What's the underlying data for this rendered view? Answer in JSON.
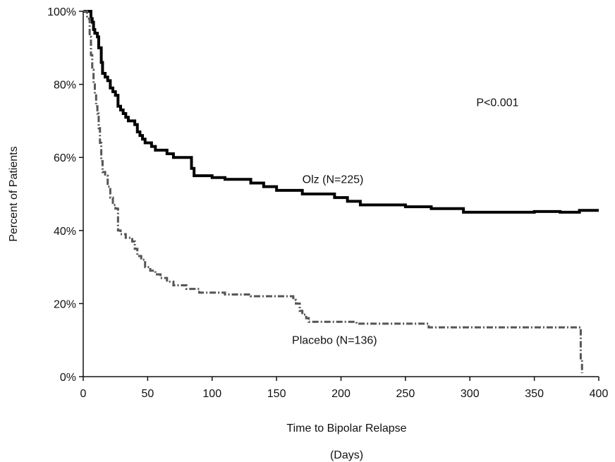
{
  "chart_data": {
    "type": "line",
    "title": "",
    "xlabel": "Time to Bipolar Relapse",
    "xlabel_unit": "(Days)",
    "ylabel": "Percent of Patients",
    "xlim": [
      0,
      400
    ],
    "ylim": [
      0,
      100
    ],
    "x_ticks": [
      0,
      50,
      100,
      150,
      200,
      250,
      300,
      350,
      400
    ],
    "x_tick_labels": [
      "0",
      "50",
      "100",
      "150",
      "200",
      "250",
      "300",
      "350",
      "400"
    ],
    "y_ticks": [
      0,
      20,
      40,
      60,
      80,
      100
    ],
    "y_tick_labels": [
      "0%",
      "20%",
      "40%",
      "60%",
      "80%",
      "100%"
    ],
    "grid": false,
    "step": true,
    "annotations": [
      {
        "text": "P<0.001",
        "x": 305,
        "y": 74
      },
      {
        "text": "Olz (N=225)",
        "x": 170,
        "y": 53
      },
      {
        "text": "Placebo (N=136)",
        "x": 162,
        "y": 9
      }
    ],
    "series": [
      {
        "name": "Olz (N=225)",
        "color": "#000000",
        "style": "solid",
        "x": [
          0,
          6,
          7,
          8,
          9,
          11,
          12,
          14,
          15,
          17,
          19,
          21,
          23,
          25,
          27,
          29,
          31,
          33,
          35,
          38,
          40,
          42,
          44,
          46,
          48,
          50,
          53,
          56,
          60,
          65,
          70,
          75,
          80,
          84,
          86,
          90,
          95,
          100,
          110,
          120,
          130,
          140,
          150,
          160,
          170,
          180,
          195,
          205,
          215,
          230,
          250,
          270,
          295,
          320,
          350,
          370,
          385,
          400
        ],
        "y": [
          100,
          98,
          97,
          95,
          94,
          93,
          90,
          86,
          83,
          82,
          81,
          79,
          78,
          77,
          74,
          73,
          72,
          71,
          70,
          70,
          69,
          67,
          66,
          65,
          64,
          64,
          63,
          62,
          62,
          61,
          60,
          60,
          60,
          57,
          55,
          55,
          55,
          54.5,
          54,
          54,
          53,
          52,
          51,
          51,
          50,
          50,
          49,
          48,
          47,
          47,
          46.5,
          46,
          45,
          45,
          45.2,
          45,
          45.5,
          45.5
        ]
      },
      {
        "name": "Placebo (N=136)",
        "color": "#555555",
        "style": "dashed",
        "x": [
          0,
          3,
          5,
          6,
          7,
          8,
          9,
          10,
          11,
          12,
          13,
          14,
          15,
          17,
          19,
          21,
          23,
          25,
          27,
          29,
          31,
          33,
          35,
          38,
          40,
          42,
          45,
          48,
          52,
          56,
          60,
          65,
          70,
          75,
          80,
          85,
          90,
          95,
          100,
          110,
          130,
          150,
          163,
          165,
          168,
          170,
          173,
          175,
          180,
          195,
          212,
          230,
          250,
          268,
          300,
          340,
          370,
          385,
          386,
          387
        ],
        "y": [
          100,
          98,
          93,
          88,
          84,
          80,
          77,
          74,
          72,
          68,
          64,
          59,
          56,
          55,
          52,
          49,
          47,
          46,
          40,
          39,
          39,
          38,
          38,
          37,
          35,
          33,
          32,
          30,
          29,
          28,
          27,
          26,
          25,
          25,
          24,
          24,
          23,
          23,
          23,
          22.5,
          22,
          22,
          21,
          20,
          18,
          17,
          16,
          15,
          15,
          15,
          14.5,
          14.5,
          14.5,
          13.5,
          13.5,
          13.5,
          13.5,
          13.5,
          5,
          1
        ]
      }
    ]
  }
}
